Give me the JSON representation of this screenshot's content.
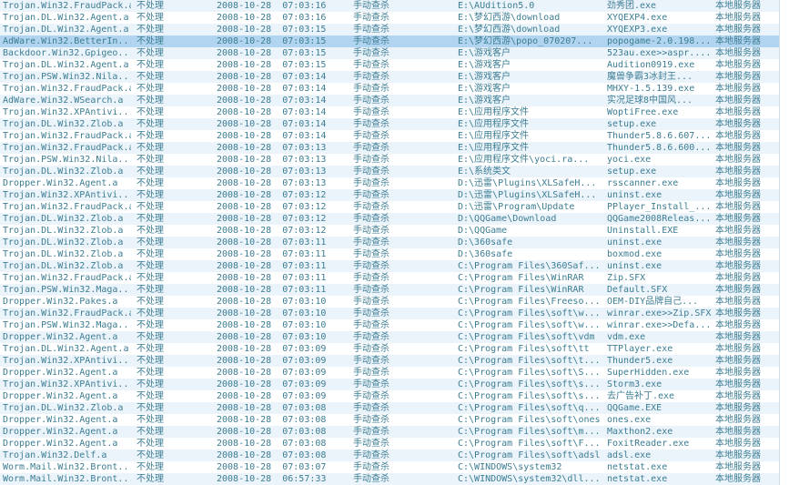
{
  "colors": {
    "text": "#3c7d93",
    "row_stripe": "#ecf4fb",
    "row_selected": "#b1d4f0",
    "background": "#ffffff",
    "gutter_border": "#cfdde8"
  },
  "log_table": {
    "selected_row_index": 3,
    "rows": [
      {
        "name": "Trojan.Win32.FraudPack.a",
        "status": "不处理",
        "time": "2008-10-28  07:03:16",
        "mode": "手动查杀",
        "path": "E:\\AUdition5.0",
        "file": "劲秀团.exe",
        "server": "本地服务器"
      },
      {
        "name": "Trojan.DL.Win32.Agent.a",
        "status": "不处理",
        "time": "2008-10-28  07:03:16",
        "mode": "手动查杀",
        "path": "E:\\梦幻西游\\download",
        "file": "XYQEXP4.exe",
        "server": "本地服务器"
      },
      {
        "name": "Trojan.DL.Win32.Agent.a",
        "status": "不处理",
        "time": "2008-10-28  07:03:15",
        "mode": "手动查杀",
        "path": "E:\\梦幻西游\\download",
        "file": "XYQEXP3.exe",
        "server": "本地服务器"
      },
      {
        "name": "AdWare.Win32.BetterIn...",
        "status": "不处理",
        "time": "2008-10-28  07:03:15",
        "mode": "手动查杀",
        "path": "E:\\梦幻西游\\popo_070207...",
        "file": "popogame-2.0.198...",
        "server": "本地服务器"
      },
      {
        "name": "Backdoor.Win32.Gpigeo...",
        "status": "不处理",
        "time": "2008-10-28  07:03:15",
        "mode": "手动查杀",
        "path": "E:\\游戏客户",
        "file": "523au.exe>>aspr....",
        "server": "本地服务器"
      },
      {
        "name": "Trojan.DL.Win32.Agent.a",
        "status": "不处理",
        "time": "2008-10-28  07:03:15",
        "mode": "手动查杀",
        "path": "E:\\游戏客户",
        "file": "Audition0919.exe",
        "server": "本地服务器"
      },
      {
        "name": "Trojan.PSW.Win32.Nila...",
        "status": "不处理",
        "time": "2008-10-28  07:03:14",
        "mode": "手动查杀",
        "path": "E:\\游戏客户",
        "file": "魔兽争霸3冰封王...",
        "server": "本地服务器"
      },
      {
        "name": "Trojan.Win32.FraudPack.a",
        "status": "不处理",
        "time": "2008-10-28  07:03:14",
        "mode": "手动查杀",
        "path": "E:\\游戏客户",
        "file": "MHXY-1.5.139.exe",
        "server": "本地服务器"
      },
      {
        "name": "AdWare.Win32.WSearch.a",
        "status": "不处理",
        "time": "2008-10-28  07:03:14",
        "mode": "手动查杀",
        "path": "E:\\游戏客户",
        "file": "实况足球8中国风...",
        "server": "本地服务器"
      },
      {
        "name": "Trojan.Win32.XPAntivi...",
        "status": "不处理",
        "time": "2008-10-28  07:03:14",
        "mode": "手动查杀",
        "path": "E:\\应用程序文件",
        "file": "WoptiFree.exe",
        "server": "本地服务器"
      },
      {
        "name": "Trojan.DL.Win32.Zlob.a",
        "status": "不处理",
        "time": "2008-10-28  07:03:14",
        "mode": "手动查杀",
        "path": "E:\\应用程序文件",
        "file": "setup.exe",
        "server": "本地服务器"
      },
      {
        "name": "Trojan.Win32.FraudPack.a",
        "status": "不处理",
        "time": "2008-10-28  07:03:14",
        "mode": "手动查杀",
        "path": "E:\\应用程序文件",
        "file": "Thunder5.8.6.607...",
        "server": "本地服务器"
      },
      {
        "name": "Trojan.Win32.FraudPack.a",
        "status": "不处理",
        "time": "2008-10-28  07:03:13",
        "mode": "手动查杀",
        "path": "E:\\应用程序文件",
        "file": "Thunder5.8.6.600...",
        "server": "本地服务器"
      },
      {
        "name": "Trojan.PSW.Win32.Nila...",
        "status": "不处理",
        "time": "2008-10-28  07:03:13",
        "mode": "手动查杀",
        "path": "E:\\应用程序文件\\yoci.ra...",
        "file": "yoci.exe",
        "server": "本地服务器"
      },
      {
        "name": "Trojan.DL.Win32.Zlob.a",
        "status": "不处理",
        "time": "2008-10-28  07:03:13",
        "mode": "手动查杀",
        "path": "E:\\系统类文",
        "file": "setup.exe",
        "server": "本地服务器"
      },
      {
        "name": "Dropper.Win32.Agent.a",
        "status": "不处理",
        "time": "2008-10-28  07:03:13",
        "mode": "手动查杀",
        "path": "D:\\迅雷\\Plugins\\XLSafeH...",
        "file": "rsscanner.exe",
        "server": "本地服务器"
      },
      {
        "name": "Trojan.Win32.XPAntivi...",
        "status": "不处理",
        "time": "2008-10-28  07:03:12",
        "mode": "手动查杀",
        "path": "D:\\迅雷\\Plugins\\XLSafeH...",
        "file": "uninst.exe",
        "server": "本地服务器"
      },
      {
        "name": "Trojan.Win32.FraudPack.a",
        "status": "不处理",
        "time": "2008-10-28  07:03:12",
        "mode": "手动查杀",
        "path": "D:\\迅雷\\Program\\Update",
        "file": "PPlayer_Install_...",
        "server": "本地服务器"
      },
      {
        "name": "Trojan.DL.Win32.Zlob.a",
        "status": "不处理",
        "time": "2008-10-28  07:03:12",
        "mode": "手动查杀",
        "path": "D:\\QQGame\\Download",
        "file": "QQGame2008Releas...",
        "server": "本地服务器"
      },
      {
        "name": "Trojan.DL.Win32.Zlob.a",
        "status": "不处理",
        "time": "2008-10-28  07:03:12",
        "mode": "手动查杀",
        "path": "D:\\QQGame",
        "file": "Uninstall.EXE",
        "server": "本地服务器"
      },
      {
        "name": "Trojan.DL.Win32.Zlob.a",
        "status": "不处理",
        "time": "2008-10-28  07:03:11",
        "mode": "手动查杀",
        "path": "D:\\360safe",
        "file": "uninst.exe",
        "server": "本地服务器"
      },
      {
        "name": "Trojan.DL.Win32.Zlob.a",
        "status": "不处理",
        "time": "2008-10-28  07:03:11",
        "mode": "手动查杀",
        "path": "D:\\360safe",
        "file": "boxmod.exe",
        "server": "本地服务器"
      },
      {
        "name": "Trojan.DL.Win32.Zlob.a",
        "status": "不处理",
        "time": "2008-10-28  07:03:11",
        "mode": "手动查杀",
        "path": "C:\\Program Files\\360Saf...",
        "file": "uninst.exe",
        "server": "本地服务器"
      },
      {
        "name": "Trojan.Win32.FraudPack.a",
        "status": "不处理",
        "time": "2008-10-28  07:03:11",
        "mode": "手动查杀",
        "path": "C:\\Program Files\\WinRAR",
        "file": "Zip.SFX",
        "server": "本地服务器"
      },
      {
        "name": "Trojan.PSW.Win32.Maga...",
        "status": "不处理",
        "time": "2008-10-28  07:03:11",
        "mode": "手动查杀",
        "path": "C:\\Program Files\\WinRAR",
        "file": "Default.SFX",
        "server": "本地服务器"
      },
      {
        "name": "Dropper.Win32.Pakes.a",
        "status": "不处理",
        "time": "2008-10-28  07:03:10",
        "mode": "手动查杀",
        "path": "C:\\Program Files\\Freeso...",
        "file": "OEM-DIY品牌自己...",
        "server": "本地服务器"
      },
      {
        "name": "Trojan.Win32.FraudPack.a",
        "status": "不处理",
        "time": "2008-10-28  07:03:10",
        "mode": "手动查杀",
        "path": "C:\\Program Files\\soft\\w...",
        "file": "winrar.exe>>Zip.SFX",
        "server": "本地服务器"
      },
      {
        "name": "Trojan.PSW.Win32.Maga...",
        "status": "不处理",
        "time": "2008-10-28  07:03:10",
        "mode": "手动查杀",
        "path": "C:\\Program Files\\soft\\w...",
        "file": "winrar.exe>>Defa...",
        "server": "本地服务器"
      },
      {
        "name": "Dropper.Win32.Agent.a",
        "status": "不处理",
        "time": "2008-10-28  07:03:10",
        "mode": "手动查杀",
        "path": "C:\\Program Files\\soft\\vdm",
        "file": "vdm.exe",
        "server": "本地服务器"
      },
      {
        "name": "Trojan.DL.Win32.Agent.a",
        "status": "不处理",
        "time": "2008-10-28  07:03:09",
        "mode": "手动查杀",
        "path": "C:\\Program Files\\soft\\tt",
        "file": "TTPlayer.exe",
        "server": "本地服务器"
      },
      {
        "name": "Trojan.Win32.XPAntivi...",
        "status": "不处理",
        "time": "2008-10-28  07:03:09",
        "mode": "手动查杀",
        "path": "C:\\Program Files\\soft\\t...",
        "file": "Thunder5.exe",
        "server": "本地服务器"
      },
      {
        "name": "Dropper.Win32.Agent.a",
        "status": "不处理",
        "time": "2008-10-28  07:03:09",
        "mode": "手动查杀",
        "path": "C:\\Program Files\\soft\\S...",
        "file": "SuperHidden.exe",
        "server": "本地服务器"
      },
      {
        "name": "Trojan.Win32.XPAntivi...",
        "status": "不处理",
        "time": "2008-10-28  07:03:09",
        "mode": "手动查杀",
        "path": "C:\\Program Files\\soft\\s...",
        "file": "Storm3.exe",
        "server": "本地服务器"
      },
      {
        "name": "Dropper.Win32.Agent.a",
        "status": "不处理",
        "time": "2008-10-28  07:03:09",
        "mode": "手动查杀",
        "path": "C:\\Program Files\\soft\\s...",
        "file": "去广告补丁.exe",
        "server": "本地服务器"
      },
      {
        "name": "Trojan.DL.Win32.Zlob.a",
        "status": "不处理",
        "time": "2008-10-28  07:03:08",
        "mode": "手动查杀",
        "path": "C:\\Program Files\\soft\\q...",
        "file": "QQGame.EXE",
        "server": "本地服务器"
      },
      {
        "name": "Dropper.Win32.Agent.a",
        "status": "不处理",
        "time": "2008-10-28  07:03:08",
        "mode": "手动查杀",
        "path": "C:\\Program Files\\soft\\ones",
        "file": "ones.exe",
        "server": "本地服务器"
      },
      {
        "name": "Dropper.Win32.Agent.a",
        "status": "不处理",
        "time": "2008-10-28  07:03:08",
        "mode": "手动查杀",
        "path": "C:\\Program Files\\soft\\m...",
        "file": "Maxthon2.exe",
        "server": "本地服务器"
      },
      {
        "name": "Dropper.Win32.Agent.a",
        "status": "不处理",
        "time": "2008-10-28  07:03:08",
        "mode": "手动查杀",
        "path": "C:\\Program Files\\soft\\F...",
        "file": "FoxitReader.exe",
        "server": "本地服务器"
      },
      {
        "name": "Trojan.Win32.Delf.a",
        "status": "不处理",
        "time": "2008-10-28  07:03:08",
        "mode": "手动查杀",
        "path": "C:\\Program Files\\soft\\adsl",
        "file": "adsl.exe",
        "server": "本地服务器"
      },
      {
        "name": "Worm.Mail.Win32.Bront...",
        "status": "不处理",
        "time": "2008-10-28  07:03:07",
        "mode": "手动查杀",
        "path": "C:\\WINDOWS\\system32",
        "file": "netstat.exe",
        "server": "本地服务器"
      },
      {
        "name": "Worm.Mail.Win32.Bront...",
        "status": "不处理",
        "time": "2008-10-28  06:57:33",
        "mode": "手动查杀",
        "path": "C:\\WINDOWS\\system32\\dll...",
        "file": "netstat.exe",
        "server": "本地服务器"
      }
    ]
  }
}
